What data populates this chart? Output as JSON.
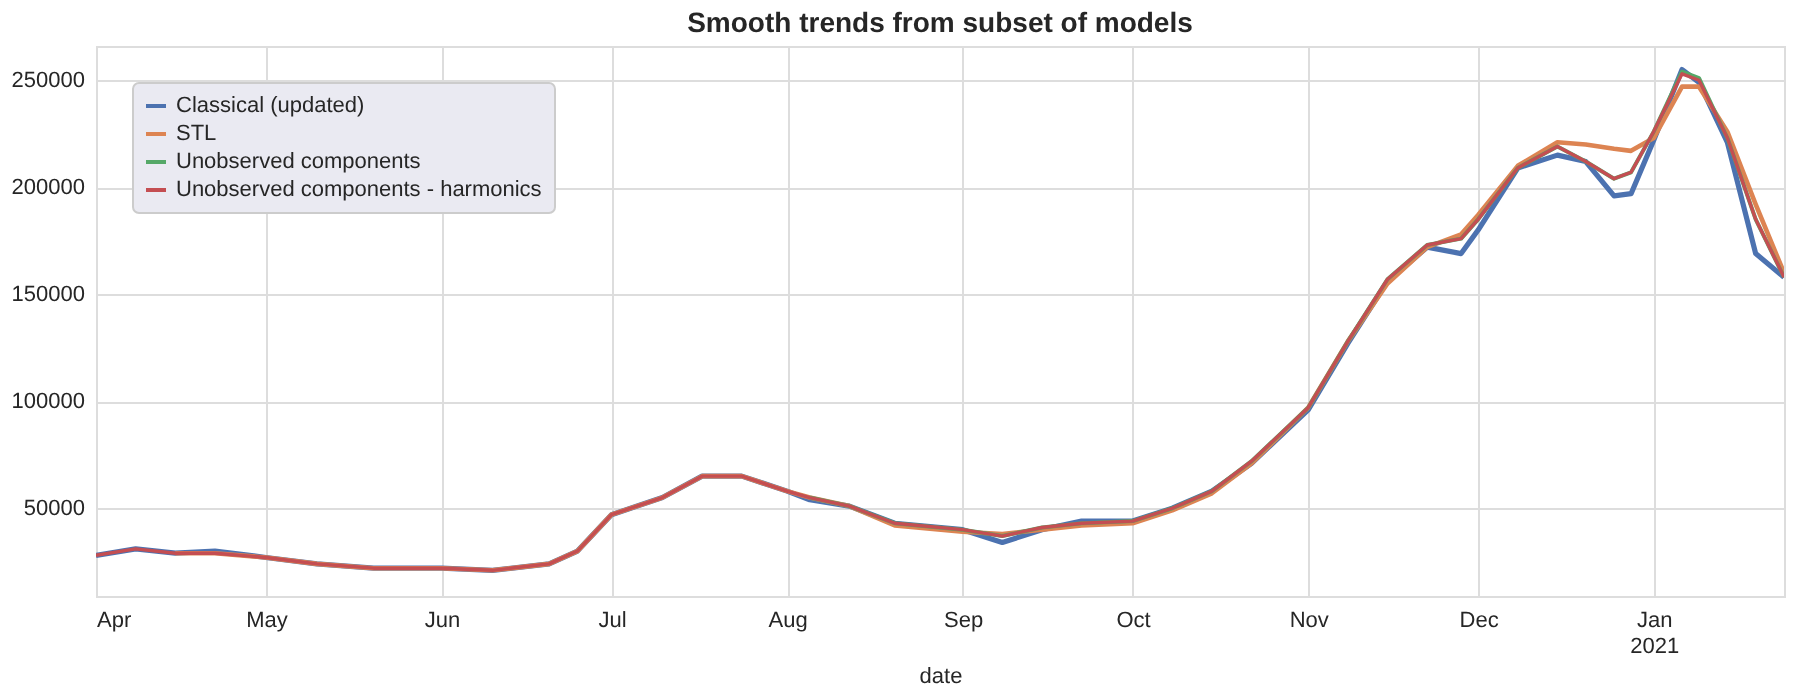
{
  "chart_data": {
    "type": "line",
    "title": "Smooth trends from subset of models",
    "xlabel": "date",
    "x": [
      "2020-04-01",
      "2020-04-08",
      "2020-04-15",
      "2020-04-22",
      "2020-05-01",
      "2020-05-10",
      "2020-05-20",
      "2020-06-01",
      "2020-06-10",
      "2020-06-20",
      "2020-06-25",
      "2020-07-01",
      "2020-07-10",
      "2020-07-17",
      "2020-07-24",
      "2020-08-01",
      "2020-08-05",
      "2020-08-12",
      "2020-08-20",
      "2020-09-01",
      "2020-09-08",
      "2020-09-15",
      "2020-09-22",
      "2020-10-01",
      "2020-10-08",
      "2020-10-15",
      "2020-10-22",
      "2020-11-01",
      "2020-11-08",
      "2020-11-15",
      "2020-11-22",
      "2020-11-28",
      "2020-12-01",
      "2020-12-08",
      "2020-12-15",
      "2020-12-20",
      "2020-12-25",
      "2020-12-28",
      "2021-01-01",
      "2021-01-06",
      "2021-01-09",
      "2021-01-14",
      "2021-01-19",
      "2021-01-24"
    ],
    "series": [
      {
        "name": "Classical (updated)",
        "color": "#4c72b0",
        "values": [
          28000,
          31000,
          29000,
          30000,
          27000,
          24000,
          22000,
          22000,
          21000,
          24000,
          30000,
          47000,
          55000,
          65000,
          65000,
          58000,
          54000,
          51000,
          43000,
          40000,
          34000,
          40000,
          44000,
          44000,
          50000,
          58000,
          71000,
          96000,
          127000,
          156000,
          172000,
          169000,
          180000,
          209000,
          215000,
          212000,
          196000,
          197000,
          222000,
          255000,
          249000,
          221000,
          169000,
          158000
        ]
      },
      {
        "name": "STL",
        "color": "#dd8452",
        "values": [
          null,
          null,
          29000,
          29000,
          27000,
          24000,
          22000,
          22000,
          21000,
          24000,
          30000,
          47000,
          55000,
          65000,
          65000,
          58000,
          55000,
          51000,
          42000,
          39000,
          38000,
          40000,
          42000,
          43000,
          49000,
          57000,
          71000,
          97000,
          128000,
          155000,
          172000,
          178000,
          187000,
          210000,
          221000,
          220000,
          218000,
          217000,
          223000,
          247000,
          247000,
          226000,
          192000,
          160000
        ]
      },
      {
        "name": "Unobserved components",
        "color": "#55a868",
        "values": [
          null,
          null,
          null,
          null,
          null,
          null,
          null,
          null,
          null,
          null,
          null,
          null,
          null,
          null,
          null,
          null,
          55000,
          51000,
          43000,
          40000,
          37000,
          41000,
          43000,
          44000,
          50000,
          58000,
          72000,
          97000,
          128000,
          157000,
          173000,
          176000,
          185000,
          209000,
          219000,
          212000,
          204000,
          207000,
          226000,
          254000,
          251000,
          223000,
          185000,
          158000
        ]
      },
      {
        "name": "Unobserved components - harmonics",
        "color": "#c44e52",
        "values": [
          28000,
          31000,
          29000,
          29000,
          27000,
          24000,
          22000,
          22000,
          21000,
          24000,
          30000,
          47000,
          55000,
          65000,
          65000,
          58000,
          55000,
          51000,
          43000,
          40000,
          37000,
          41000,
          43000,
          44000,
          50000,
          58000,
          72000,
          97000,
          128000,
          157000,
          173000,
          176000,
          185000,
          209000,
          219000,
          212000,
          204000,
          207000,
          226000,
          253000,
          250000,
          223000,
          185000,
          158000
        ]
      }
    ],
    "xlim": [
      "2020-04-01",
      "2021-01-24"
    ],
    "xticks": [
      {
        "value": "2020-04-01",
        "label": "Apr"
      },
      {
        "value": "2020-05-01",
        "label": "May"
      },
      {
        "value": "2020-06-01",
        "label": "Jun"
      },
      {
        "value": "2020-07-01",
        "label": "Jul"
      },
      {
        "value": "2020-08-01",
        "label": "Aug"
      },
      {
        "value": "2020-09-01",
        "label": "Sep"
      },
      {
        "value": "2020-10-01",
        "label": "Oct"
      },
      {
        "value": "2020-11-01",
        "label": "Nov"
      },
      {
        "value": "2020-12-01",
        "label": "Dec"
      },
      {
        "value": "2021-01-01",
        "label": "Jan\n2021"
      }
    ],
    "ylim": [
      9000,
      266000
    ],
    "yticks": [
      50000,
      100000,
      150000,
      200000,
      250000
    ],
    "grid": true,
    "legend": "top left",
    "line_style": "solid",
    "marker": "none"
  }
}
